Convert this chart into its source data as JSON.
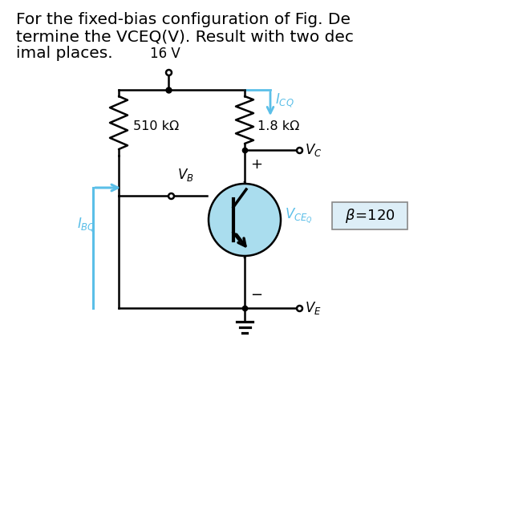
{
  "title_line1": "For the fixed-bias configuration of Fig. De",
  "title_line2": "termine the VCEQ(V). Result with two dec",
  "title_line3": "imal places.",
  "voltage_label": "16 V",
  "r1_label": "1.8 kΩ",
  "r2_label": "510 kΩ",
  "bg_color": "#ffffff",
  "line_color": "#000000",
  "blue_color": "#5bbfe8",
  "transistor_fill": "#aaddee",
  "text_color": "#000000",
  "fig_w": 6.62,
  "fig_h": 6.32,
  "dpi": 100
}
